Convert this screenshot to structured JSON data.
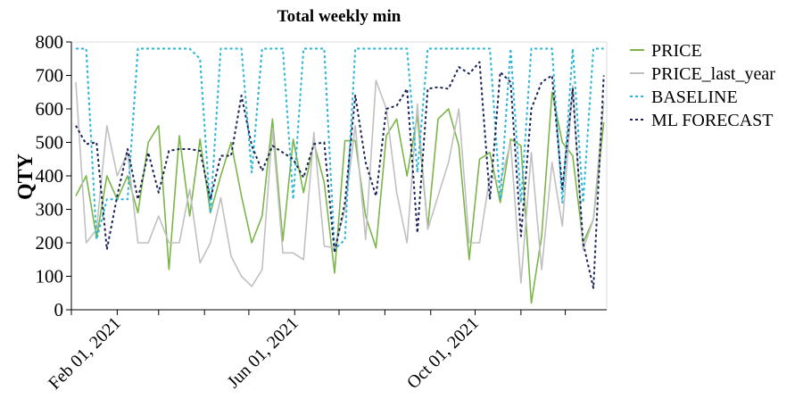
{
  "chart_data": {
    "type": "line",
    "title": "Total weekly min",
    "xlabel": "",
    "ylabel": "QTY",
    "ylim": [
      0,
      800
    ],
    "yticks": [
      0,
      100,
      200,
      300,
      400,
      500,
      600,
      700,
      800
    ],
    "x_ticks": [
      "Feb 01, 2021",
      "Jun 01, 2021",
      "Oct 01, 2021"
    ],
    "grid": false,
    "legend_position": "right",
    "x": [
      "2021-01-04",
      "2021-01-11",
      "2021-01-18",
      "2021-01-25",
      "2021-02-01",
      "2021-02-08",
      "2021-02-15",
      "2021-02-22",
      "2021-03-01",
      "2021-03-08",
      "2021-03-15",
      "2021-03-22",
      "2021-03-29",
      "2021-04-05",
      "2021-04-12",
      "2021-04-19",
      "2021-04-26",
      "2021-05-03",
      "2021-05-10",
      "2021-05-17",
      "2021-05-24",
      "2021-05-31",
      "2021-06-07",
      "2021-06-14",
      "2021-06-21",
      "2021-06-28",
      "2021-07-05",
      "2021-07-12",
      "2021-07-19",
      "2021-07-26",
      "2021-08-02",
      "2021-08-09",
      "2021-08-16",
      "2021-08-23",
      "2021-08-30",
      "2021-09-06",
      "2021-09-13",
      "2021-09-20",
      "2021-09-27",
      "2021-10-04",
      "2021-10-11",
      "2021-10-18",
      "2021-10-25",
      "2021-11-01",
      "2021-11-08",
      "2021-11-15",
      "2021-11-22",
      "2021-11-29",
      "2021-12-06",
      "2021-12-13",
      "2021-12-20",
      "2021-12-27"
    ],
    "series": [
      {
        "name": "PRICE",
        "color": "#7ab648",
        "dash": "solid",
        "values": [
          340,
          400,
          215,
          400,
          330,
          400,
          290,
          500,
          550,
          120,
          520,
          280,
          510,
          290,
          400,
          500,
          340,
          200,
          280,
          570,
          205,
          510,
          350,
          500,
          380,
          110,
          505,
          505,
          280,
          185,
          520,
          570,
          400,
          580,
          245,
          570,
          600,
          490,
          150,
          450,
          470,
          320,
          510,
          490,
          20,
          220,
          650,
          500,
          460,
          200,
          270,
          560
        ]
      },
      {
        "name": "PRICE_last_year",
        "color": "#c0c0c0",
        "dash": "solid",
        "values": [
          680,
          200,
          240,
          550,
          400,
          470,
          200,
          200,
          280,
          200,
          200,
          360,
          140,
          200,
          335,
          160,
          100,
          70,
          120,
          540,
          170,
          170,
          150,
          530,
          190,
          185,
          300,
          550,
          210,
          685,
          600,
          350,
          200,
          615,
          240,
          340,
          440,
          600,
          200,
          200,
          400,
          380,
          500,
          80,
          470,
          120,
          440,
          250,
          670,
          180,
          270,
          620
        ]
      },
      {
        "name": "BASELINE",
        "color": "#29b6d8",
        "dash": "3,3",
        "values": [
          780,
          780,
          210,
          330,
          330,
          330,
          780,
          780,
          780,
          780,
          780,
          780,
          750,
          290,
          780,
          780,
          780,
          410,
          780,
          780,
          780,
          330,
          780,
          780,
          780,
          180,
          210,
          780,
          780,
          780,
          780,
          780,
          780,
          410,
          780,
          780,
          780,
          780,
          780,
          780,
          780,
          330,
          780,
          320,
          780,
          780,
          780,
          320,
          780,
          320,
          780,
          780
        ]
      },
      {
        "name": "ML FORECAST",
        "color": "#1a2357",
        "dash": "3,3",
        "values": [
          550,
          495,
          500,
          180,
          340,
          480,
          330,
          470,
          350,
          475,
          480,
          480,
          475,
          330,
          460,
          460,
          640,
          490,
          415,
          490,
          470,
          450,
          395,
          495,
          500,
          170,
          320,
          640,
          440,
          340,
          600,
          610,
          660,
          230,
          660,
          665,
          660,
          725,
          705,
          740,
          330,
          710,
          680,
          220,
          600,
          680,
          700,
          360,
          660,
          200,
          65,
          700
        ]
      }
    ]
  }
}
